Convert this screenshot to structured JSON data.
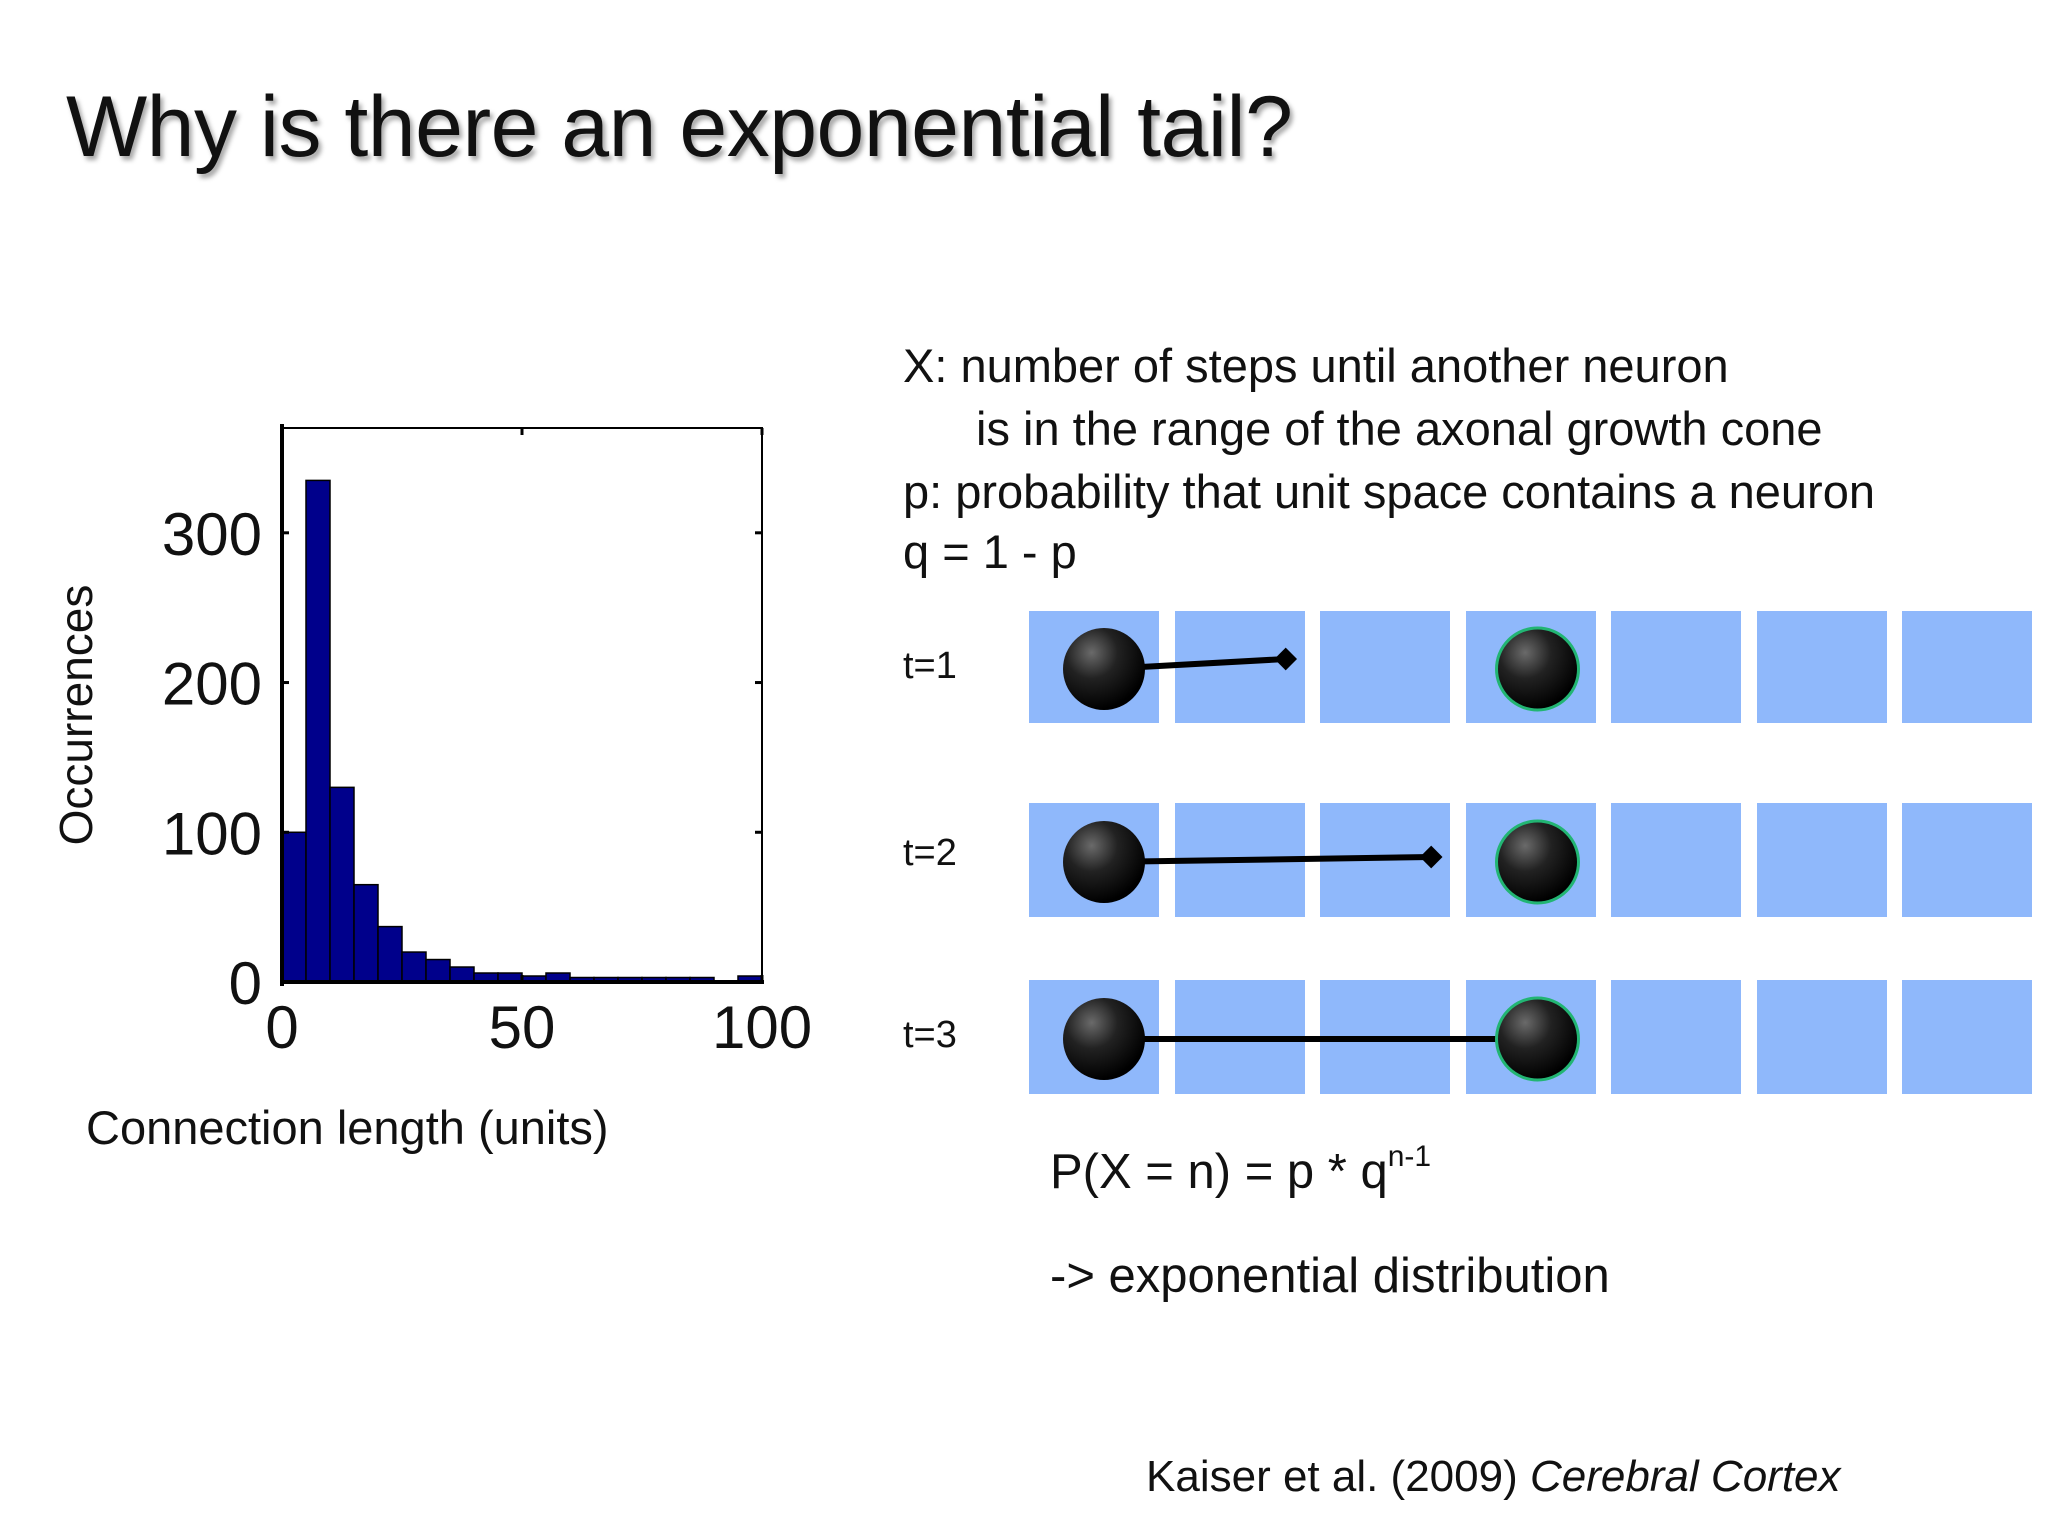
{
  "slide": {
    "title": "Why is there an exponential tail?"
  },
  "chart_data": {
    "type": "bar",
    "title": "",
    "xlabel": "Connection length (units)",
    "ylabel": "Occurrences",
    "xlim": [
      0,
      100
    ],
    "ylim": [
      0,
      370
    ],
    "xticks": [
      "0",
      "50",
      "100"
    ],
    "yticks": [
      "0",
      "100",
      "200",
      "300"
    ],
    "bin_edges": [
      0,
      5,
      10,
      15,
      20,
      25,
      30,
      35,
      40,
      45,
      50,
      55,
      60,
      65,
      70,
      75,
      80,
      85,
      90,
      95,
      100
    ],
    "values": [
      100,
      335,
      130,
      65,
      37,
      20,
      15,
      10,
      6,
      6,
      4,
      6,
      3,
      3,
      3,
      3,
      3,
      3,
      0,
      4
    ],
    "bar_color": "#00008b",
    "grid": false
  },
  "definitions": {
    "line1": "X: number of steps until another neuron",
    "line2": "is in the range of the axonal growth cone",
    "line3": "p:  probability that unit space contains a neuron",
    "line4": "q = 1 - p"
  },
  "steps": [
    {
      "label": "t=1",
      "reach_cells": 1.4
    },
    {
      "label": "t=2",
      "reach_cells": 2.4
    },
    {
      "label": "t=3",
      "reach_cells": 3.0
    }
  ],
  "grid_colors": {
    "cell": "#8fb8fb",
    "target_ring": "#22b573"
  },
  "formula": {
    "lhs": "P(X = n)  =  p * q",
    "exponent": "n-1"
  },
  "conclusion": "-> exponential distribution",
  "citation": {
    "authors": "Kaiser et al. (2009) ",
    "journal": "Cerebral Cortex"
  }
}
